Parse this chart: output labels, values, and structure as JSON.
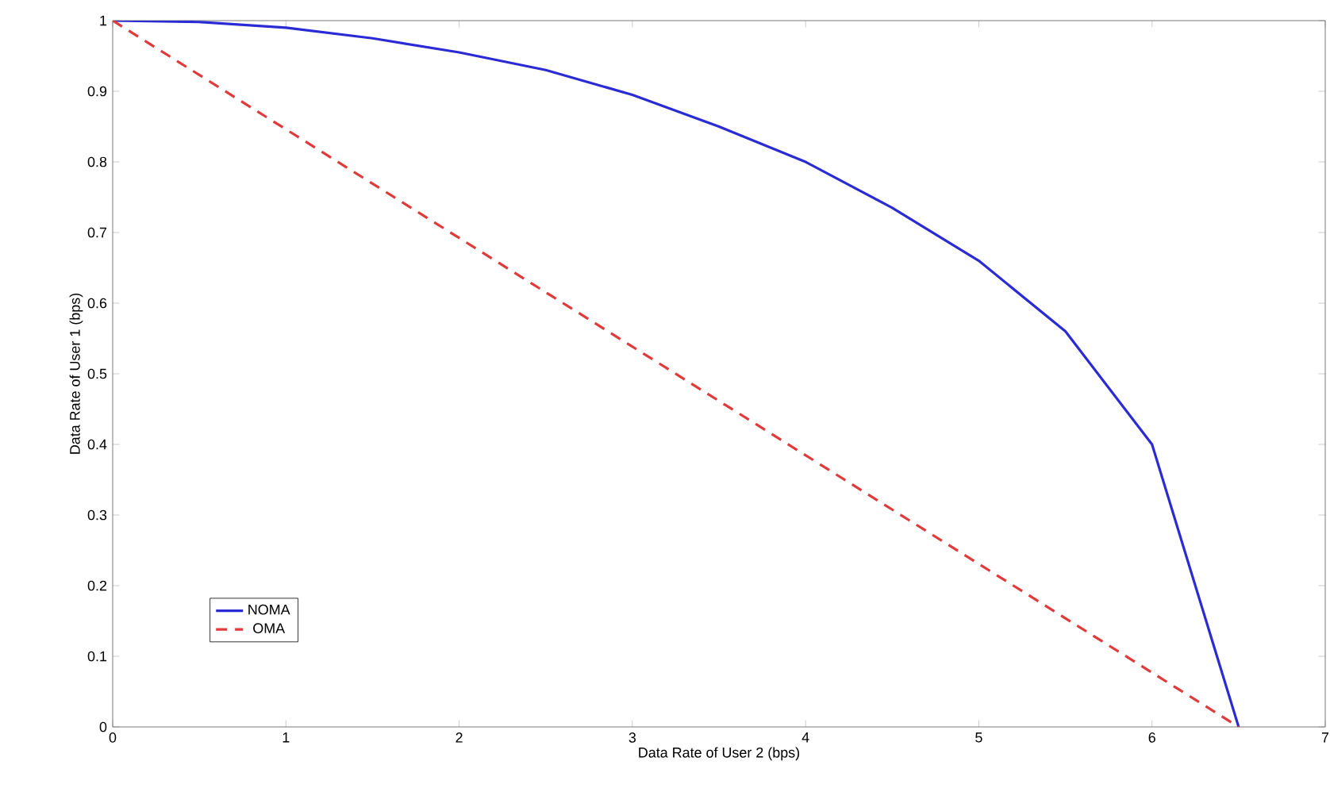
{
  "chart_data": {
    "type": "line",
    "xlabel": "Data Rate of User 2 (bps)",
    "ylabel": "Data Rate of User 1 (bps)",
    "xlim": [
      0,
      7
    ],
    "ylim": [
      0,
      1
    ],
    "xticks": [
      0,
      1,
      2,
      3,
      4,
      5,
      6,
      7
    ],
    "yticks": [
      0,
      0.1,
      0.2,
      0.3,
      0.4,
      0.5,
      0.6,
      0.7,
      0.8,
      0.9,
      1
    ],
    "grid": false,
    "legend": "bottom left",
    "marker": "none",
    "series": [
      {
        "name": "NOMA",
        "color": "#2b2bd6",
        "line_style": "solid",
        "x": [
          0,
          0.5,
          1,
          1.5,
          2,
          2.5,
          3,
          3.5,
          4,
          4.5,
          5,
          5.5,
          6,
          6.5
        ],
        "values": [
          1,
          0.998,
          0.99,
          0.975,
          0.955,
          0.93,
          0.895,
          0.85,
          0.8,
          0.735,
          0.66,
          0.56,
          0.4,
          0
        ]
      },
      {
        "name": "OMA",
        "color": "#e03a3a",
        "line_style": "dashed",
        "x": [
          0,
          6.5
        ],
        "values": [
          1,
          0
        ]
      }
    ]
  }
}
